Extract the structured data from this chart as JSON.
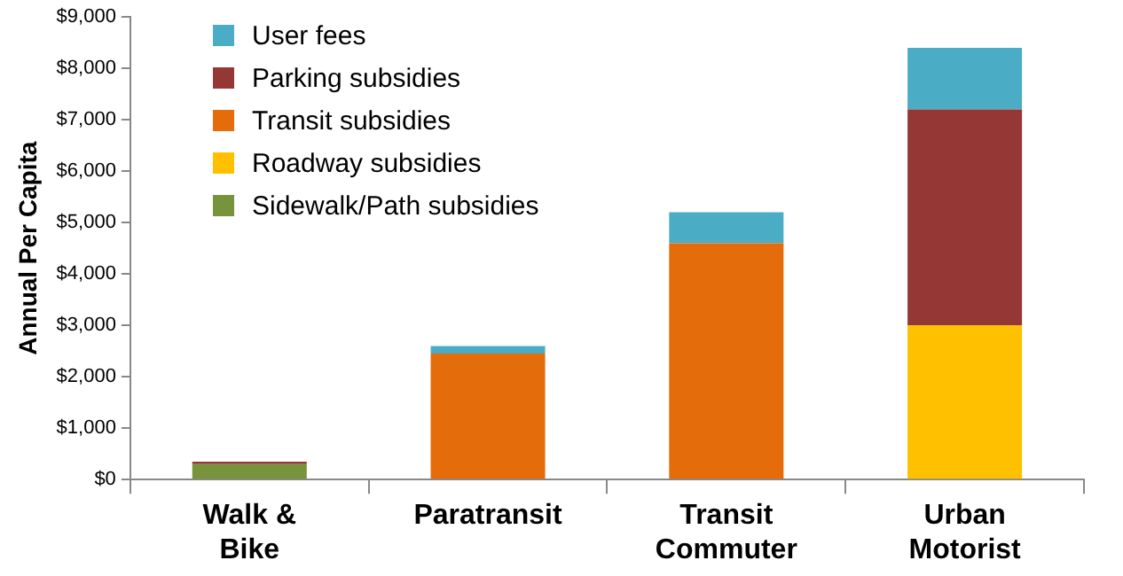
{
  "chart_data": {
    "type": "bar",
    "stacked": true,
    "ylabel": "Annual Per Capita",
    "categories": [
      "Walk & Bike",
      "Paratransit",
      "Transit Commuter",
      "Urban Motorist"
    ],
    "series": [
      {
        "name": "Sidewalk/Path subsidies",
        "color": "#77933c",
        "values": [
          300,
          0,
          0,
          0
        ]
      },
      {
        "name": "Roadway subsidies",
        "color": "#ffc000",
        "values": [
          0,
          0,
          0,
          3000
        ]
      },
      {
        "name": "Transit subsidies",
        "color": "#e46c0a",
        "values": [
          0,
          2450,
          4600,
          0
        ]
      },
      {
        "name": "Parking subsidies",
        "color": "#953735",
        "values": [
          50,
          0,
          0,
          4200
        ]
      },
      {
        "name": "User fees",
        "color": "#4bacc6",
        "values": [
          0,
          150,
          600,
          1200
        ]
      }
    ],
    "ylim": [
      0,
      9000
    ],
    "yticks": [
      {
        "value": 0,
        "label": "$0"
      },
      {
        "value": 1000,
        "label": "$1,000"
      },
      {
        "value": 2000,
        "label": "$2,000"
      },
      {
        "value": 3000,
        "label": "$3,000"
      },
      {
        "value": 4000,
        "label": "$4,000"
      },
      {
        "value": 5000,
        "label": "$5,000"
      },
      {
        "value": 6000,
        "label": "$6,000"
      },
      {
        "value": 7000,
        "label": "$7,000"
      },
      {
        "value": 8000,
        "label": "$8,000"
      },
      {
        "value": 9000,
        "label": "$9,000"
      }
    ],
    "grid": false,
    "legend": "top left"
  }
}
